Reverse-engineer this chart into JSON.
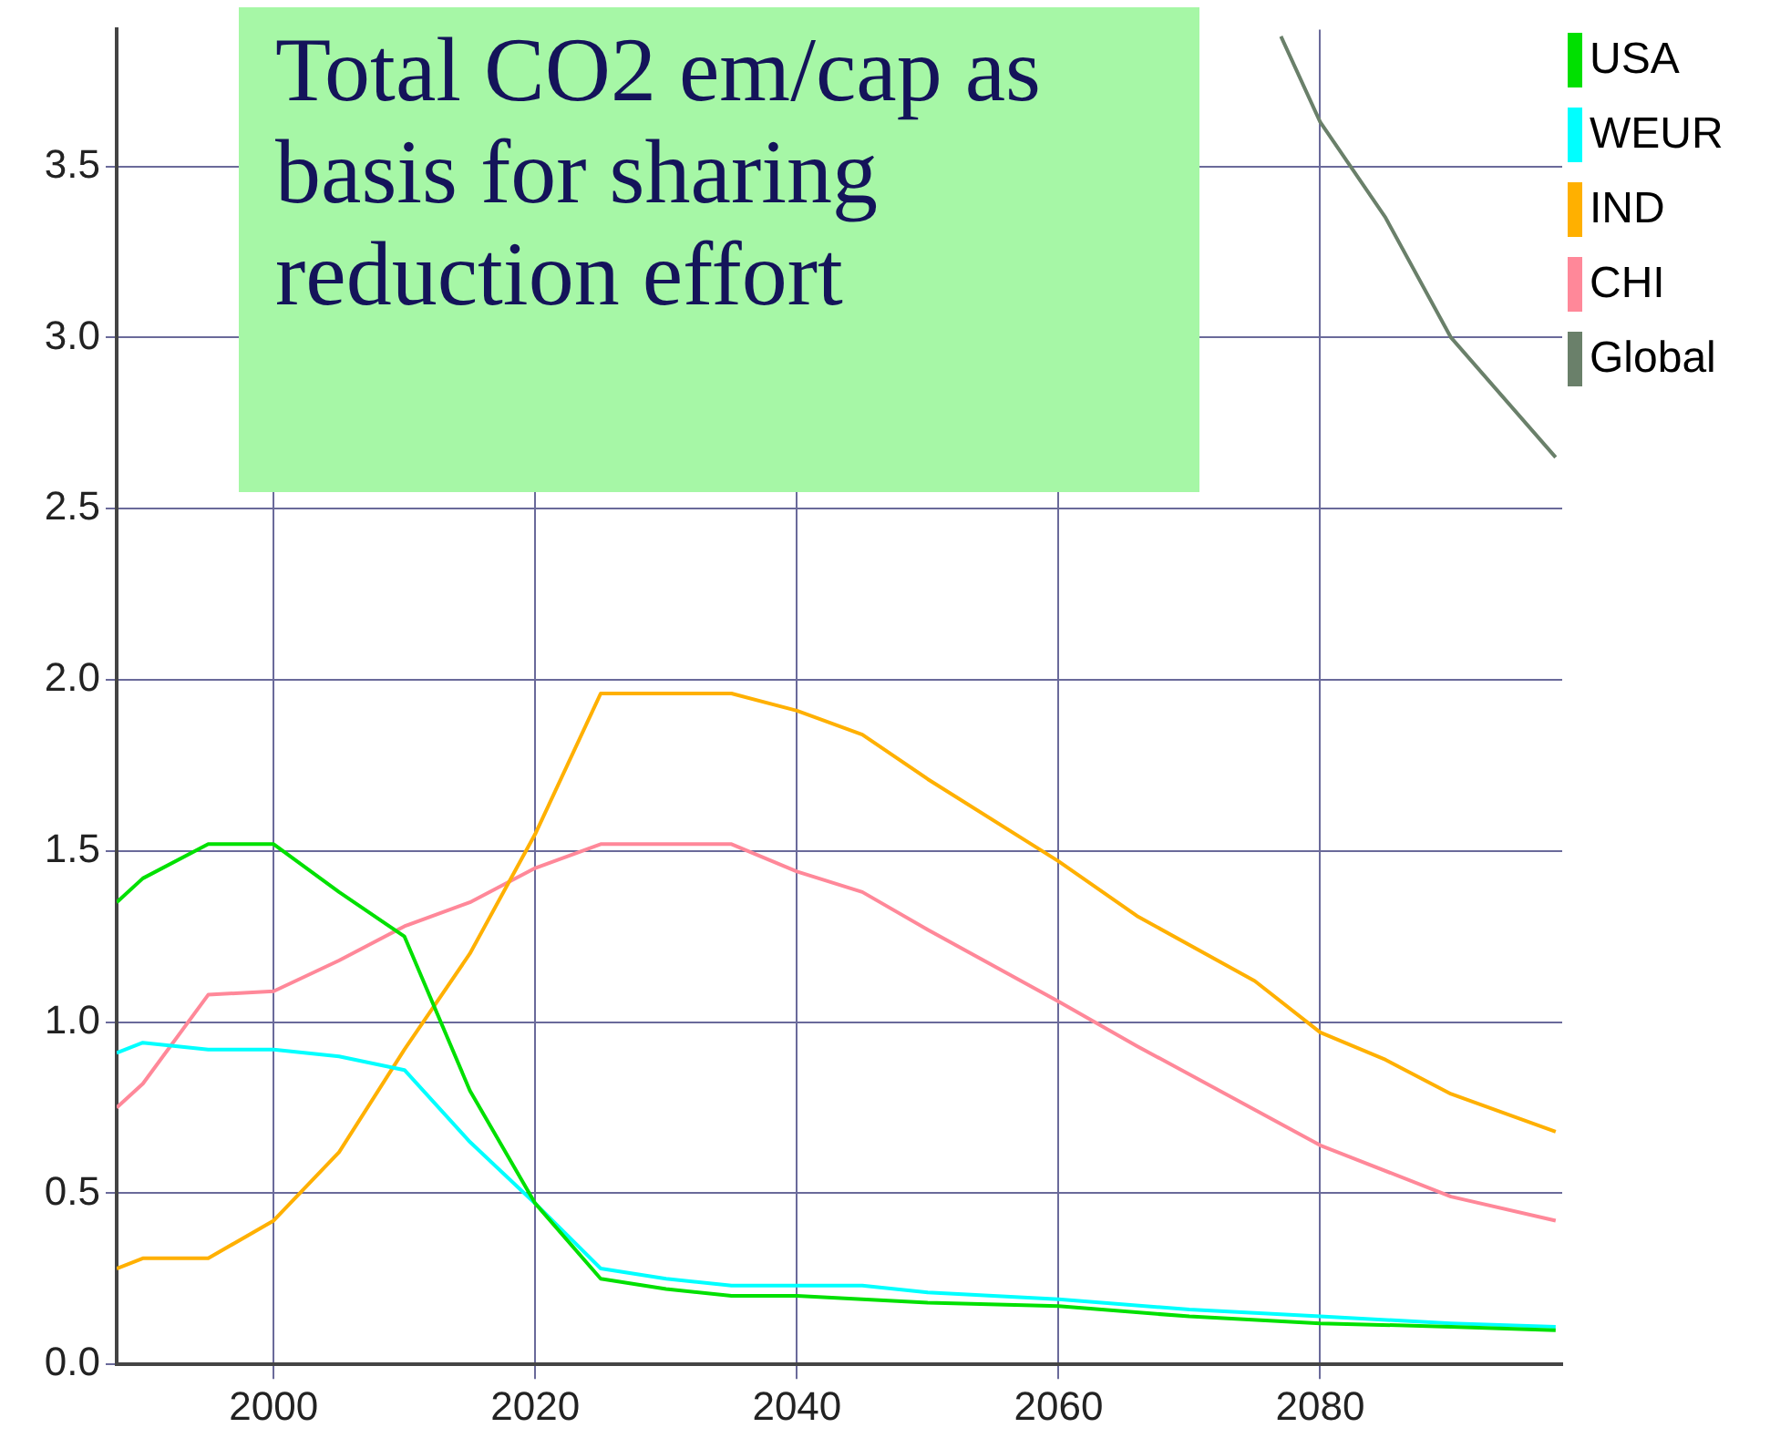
{
  "chart_data": {
    "type": "line",
    "title": "Total CO2 em/cap as basis for sharing reduction effort",
    "xlim": [
      1988,
      2098.5
    ],
    "xticks": [
      2000,
      2020,
      2040,
      2060,
      2080
    ],
    "ylim": [
      0,
      3.9
    ],
    "yticks": [
      {
        "value": 0,
        "label": "0.0"
      },
      {
        "value": 0.5,
        "label": "0.5"
      },
      {
        "value": 1,
        "label": "1.0"
      },
      {
        "value": 1.5,
        "label": "1.5"
      },
      {
        "value": 2,
        "label": "2.0"
      },
      {
        "value": 2.5,
        "label": "2.5"
      },
      {
        "value": 3,
        "label": "3.0"
      },
      {
        "value": 3.5,
        "label": "3.5"
      }
    ],
    "grid": true,
    "legend": "top right",
    "marker": "none",
    "line_style": "solid",
    "series": [
      {
        "name": "USA",
        "color": "#00e000",
        "x": [
          1988,
          1990,
          1995,
          2000,
          2005,
          2010,
          2015,
          2020,
          2025,
          2030,
          2035,
          2040,
          2050,
          2060,
          2070,
          2080,
          2090,
          2098
        ],
        "values": [
          1.35,
          1.42,
          1.52,
          1.52,
          1.38,
          1.25,
          0.8,
          0.47,
          0.25,
          0.22,
          0.2,
          0.2,
          0.18,
          0.17,
          0.14,
          0.12,
          0.11,
          0.1
        ]
      },
      {
        "name": "WEUR",
        "color": "#00ffff",
        "x": [
          1988,
          1990,
          1995,
          2000,
          2005,
          2010,
          2015,
          2020,
          2025,
          2030,
          2035,
          2045,
          2050,
          2060,
          2070,
          2080,
          2090,
          2098
        ],
        "values": [
          0.91,
          0.94,
          0.92,
          0.92,
          0.9,
          0.86,
          0.65,
          0.47,
          0.28,
          0.25,
          0.23,
          0.23,
          0.21,
          0.19,
          0.16,
          0.14,
          0.12,
          0.11
        ]
      },
      {
        "name": "IND",
        "color": "#ffb000",
        "x": [
          1988,
          1990,
          1995,
          2000,
          2005,
          2010,
          2015,
          2020,
          2025,
          2035,
          2040,
          2045,
          2050,
          2060,
          2066,
          2075,
          2080,
          2085,
          2090,
          2098
        ],
        "values": [
          0.28,
          0.31,
          0.31,
          0.42,
          0.62,
          0.92,
          1.2,
          1.55,
          1.96,
          1.96,
          1.91,
          1.84,
          1.71,
          1.47,
          1.31,
          1.12,
          0.97,
          0.89,
          0.79,
          0.68
        ]
      },
      {
        "name": "CHI",
        "color": "#ff8899",
        "x": [
          1988,
          1990,
          1995,
          2000,
          2005,
          2010,
          2015,
          2020,
          2025,
          2035,
          2040,
          2045,
          2050,
          2060,
          2066,
          2080,
          2090,
          2098
        ],
        "values": [
          0.75,
          0.82,
          1.08,
          1.09,
          1.18,
          1.28,
          1.35,
          1.45,
          1.52,
          1.52,
          1.44,
          1.38,
          1.27,
          1.06,
          0.93,
          0.64,
          0.49,
          0.42
        ]
      },
      {
        "name": "Global",
        "color": "#6a806a",
        "x": [
          2077,
          2080,
          2085,
          2090,
          2098
        ],
        "values": [
          3.88,
          3.63,
          3.35,
          3.0,
          2.65
        ]
      }
    ]
  }
}
